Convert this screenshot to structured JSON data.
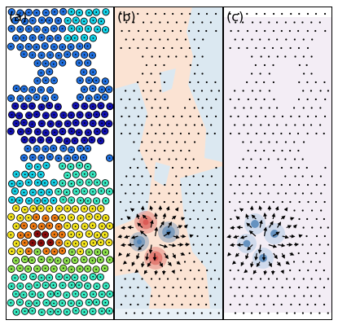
{
  "panels": [
    {
      "label": "(a)"
    },
    {
      "label": "(b)"
    },
    {
      "label": "(c)"
    }
  ],
  "colors": {
    "warm_region": "#fbe3d3",
    "cool_region": "#dbe8f1",
    "hot_spot": "#d9534f",
    "cold_spot": "#4a7fb5",
    "panel_c_bg": "#f3edf5",
    "particle_deep_blue": "#1010b0",
    "particle_blue": "#1e6fe0",
    "particle_cyan": "#12d0e6",
    "particle_teal": "#36e8c0",
    "particle_yellow": "#f4e41c",
    "particle_orange": "#f07a10",
    "particle_red": "#8b0a0a",
    "particle_green": "#8be04a"
  }
}
